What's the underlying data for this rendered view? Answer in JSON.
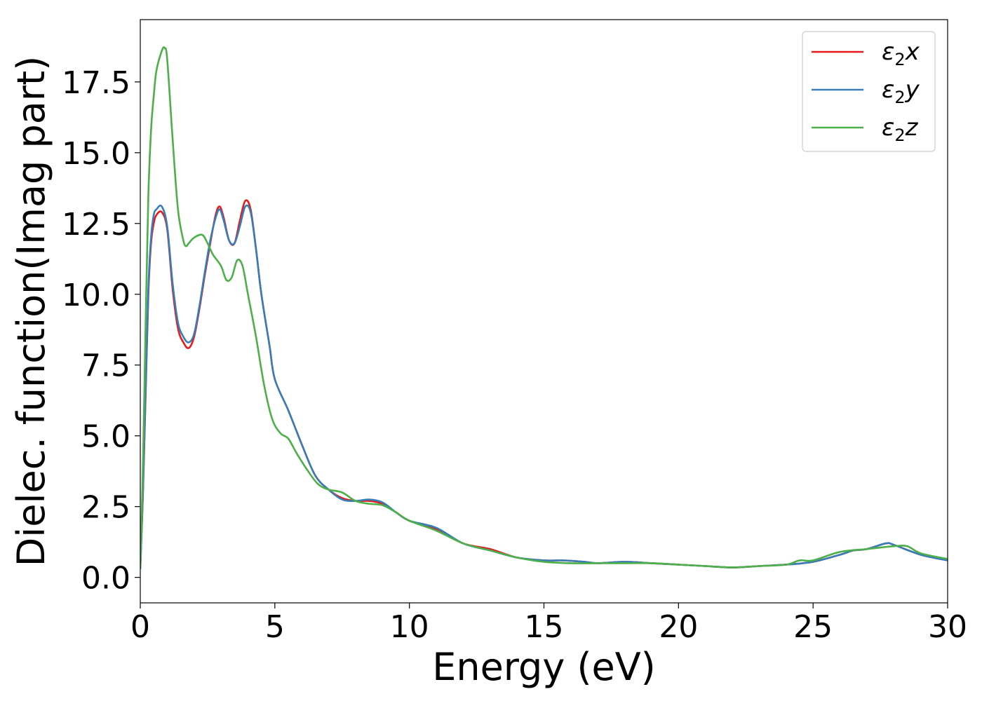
{
  "chart_data": {
    "type": "line",
    "xlabel": "Energy (eV)",
    "ylabel": "Dielec. function(Imag part)",
    "xlim": [
      0,
      30
    ],
    "ylim": [
      -0.9,
      19.7
    ],
    "xticks": [
      0,
      5,
      10,
      15,
      20,
      25,
      30
    ],
    "xtick_labels": [
      "0",
      "5",
      "10",
      "15",
      "20",
      "25",
      "30"
    ],
    "yticks": [
      0.0,
      2.5,
      5.0,
      7.5,
      10.0,
      12.5,
      15.0,
      17.5
    ],
    "ytick_labels": [
      "0.0",
      "2.5",
      "5.0",
      "7.5",
      "10.0",
      "12.5",
      "15.0",
      "17.5"
    ],
    "grid": false,
    "legend_position": "top-right",
    "series": [
      {
        "name": "ε2x",
        "name_base": "ε",
        "name_sub": "2",
        "name_tail": "x",
        "color": "#e41a1c",
        "x": [
          0,
          0.1,
          0.2,
          0.3,
          0.4,
          0.5,
          0.6,
          0.8,
          1.0,
          1.2,
          1.4,
          1.6,
          1.8,
          2.0,
          2.2,
          2.4,
          2.6,
          2.8,
          2.95,
          3.1,
          3.3,
          3.5,
          3.7,
          3.9,
          4.1,
          4.3,
          4.5,
          4.8,
          5.0,
          5.5,
          6.0,
          6.5,
          7.0,
          7.5,
          8.0,
          8.5,
          9.0,
          9.5,
          10.0,
          11.0,
          12.0,
          13.0,
          14.0,
          15.0,
          15.7,
          16.5,
          17.0,
          18.0,
          19.0,
          20.0,
          21.0,
          22.0,
          23.0,
          24.0,
          25.0,
          26.0,
          26.5,
          27.0,
          27.7,
          28.0,
          29.0,
          30.0
        ],
        "y": [
          0.3,
          3.0,
          6.5,
          10.0,
          11.8,
          12.5,
          12.8,
          12.9,
          12.3,
          10.2,
          8.8,
          8.3,
          8.1,
          8.5,
          9.5,
          10.7,
          11.8,
          12.8,
          13.1,
          12.7,
          11.9,
          11.8,
          12.6,
          13.3,
          13.0,
          11.6,
          10.0,
          8.2,
          7.0,
          5.9,
          4.7,
          3.6,
          3.1,
          2.8,
          2.7,
          2.7,
          2.6,
          2.3,
          2.0,
          1.7,
          1.2,
          1.0,
          0.7,
          0.6,
          0.6,
          0.55,
          0.5,
          0.55,
          0.5,
          0.45,
          0.4,
          0.35,
          0.4,
          0.45,
          0.55,
          0.8,
          0.95,
          1.0,
          1.2,
          1.15,
          0.8,
          0.6
        ]
      },
      {
        "name": "ε2y",
        "name_base": "ε",
        "name_sub": "2",
        "name_tail": "y",
        "color": "#377eb8",
        "x": [
          0,
          0.1,
          0.2,
          0.3,
          0.4,
          0.5,
          0.6,
          0.8,
          1.0,
          1.2,
          1.4,
          1.6,
          1.8,
          2.0,
          2.2,
          2.4,
          2.6,
          2.8,
          2.95,
          3.1,
          3.3,
          3.5,
          3.7,
          3.9,
          4.1,
          4.3,
          4.5,
          4.8,
          5.0,
          5.5,
          6.0,
          6.5,
          7.0,
          7.5,
          8.0,
          8.5,
          9.0,
          9.5,
          10.0,
          11.0,
          12.0,
          13.0,
          14.0,
          15.0,
          15.7,
          16.5,
          17.0,
          18.0,
          19.0,
          20.0,
          21.0,
          22.0,
          23.0,
          24.0,
          25.0,
          26.0,
          26.5,
          27.0,
          27.7,
          28.0,
          29.0,
          30.0
        ],
        "y": [
          0.3,
          3.1,
          6.7,
          10.2,
          12.0,
          12.8,
          13.0,
          13.1,
          12.4,
          10.4,
          9.0,
          8.5,
          8.3,
          8.6,
          9.6,
          10.8,
          11.9,
          12.7,
          13.0,
          12.6,
          11.9,
          11.8,
          12.4,
          13.1,
          12.9,
          11.6,
          10.0,
          8.2,
          7.0,
          5.9,
          4.7,
          3.6,
          3.1,
          2.75,
          2.7,
          2.75,
          2.65,
          2.3,
          2.0,
          1.75,
          1.2,
          0.95,
          0.7,
          0.6,
          0.6,
          0.55,
          0.5,
          0.55,
          0.5,
          0.45,
          0.4,
          0.35,
          0.4,
          0.45,
          0.55,
          0.8,
          0.95,
          1.0,
          1.2,
          1.15,
          0.8,
          0.6
        ]
      },
      {
        "name": "ε2z",
        "name_base": "ε",
        "name_sub": "2",
        "name_tail": "z",
        "color": "#4daf4a",
        "x": [
          0,
          0.1,
          0.2,
          0.3,
          0.4,
          0.5,
          0.6,
          0.8,
          0.9,
          1.0,
          1.2,
          1.4,
          1.6,
          1.7,
          1.8,
          2.0,
          2.3,
          2.5,
          2.7,
          3.0,
          3.2,
          3.4,
          3.6,
          3.8,
          4.0,
          4.3,
          4.6,
          4.9,
          5.2,
          5.5,
          5.8,
          6.2,
          6.6,
          7.0,
          7.5,
          8.0,
          8.5,
          9.0,
          9.5,
          10.0,
          11.0,
          12.0,
          13.0,
          14.0,
          15.0,
          16.0,
          17.0,
          18.0,
          19.0,
          20.0,
          21.0,
          22.0,
          23.0,
          24.0,
          24.5,
          25.0,
          26.0,
          27.0,
          28.0,
          28.5,
          29.0,
          30.0
        ],
        "y": [
          0.3,
          4.0,
          9.0,
          13.5,
          15.8,
          17.0,
          17.9,
          18.6,
          18.7,
          18.3,
          15.5,
          13.0,
          11.9,
          11.7,
          11.8,
          12.0,
          12.1,
          11.8,
          11.4,
          11.0,
          10.5,
          10.6,
          11.2,
          11.0,
          10.0,
          8.5,
          6.8,
          5.6,
          5.1,
          4.9,
          4.4,
          3.8,
          3.3,
          3.1,
          3.0,
          2.7,
          2.6,
          2.55,
          2.3,
          2.0,
          1.65,
          1.2,
          0.95,
          0.7,
          0.55,
          0.5,
          0.5,
          0.5,
          0.5,
          0.45,
          0.4,
          0.35,
          0.4,
          0.45,
          0.6,
          0.6,
          0.9,
          1.0,
          1.1,
          1.1,
          0.85,
          0.65
        ]
      }
    ]
  }
}
